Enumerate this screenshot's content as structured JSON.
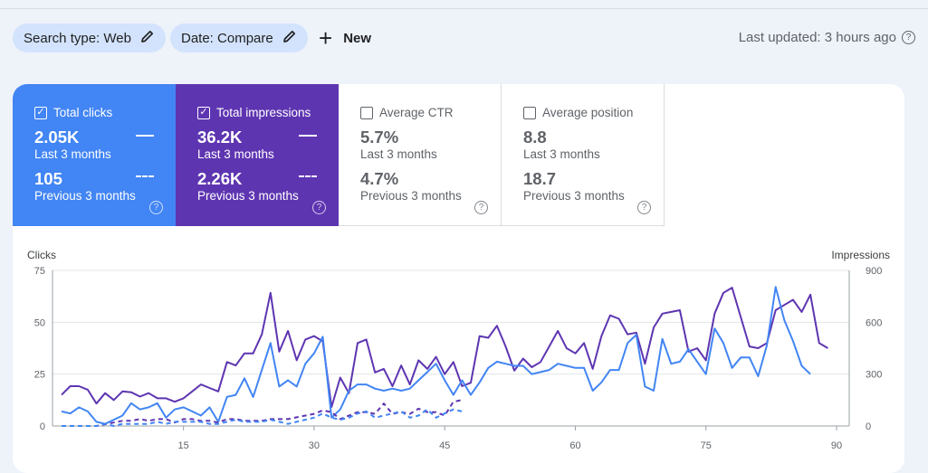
{
  "filters": {
    "search_type": "Search type: Web",
    "date": "Date: Compare",
    "new_label": "New"
  },
  "last_updated": "Last updated: 3 hours ago",
  "metrics": [
    {
      "name": "Total clicks",
      "checked": true,
      "current": "2.05K",
      "current_label": "Last 3 months",
      "previous": "105",
      "previous_label": "Previous 3 months",
      "color": "#4285f4"
    },
    {
      "name": "Total impressions",
      "checked": true,
      "current": "36.2K",
      "current_label": "Last 3 months",
      "previous": "2.26K",
      "previous_label": "Previous 3 months",
      "color": "#5e35b1"
    },
    {
      "name": "Average CTR",
      "checked": false,
      "current": "5.7%",
      "current_label": "Last 3 months",
      "previous": "4.7%",
      "previous_label": "Previous 3 months"
    },
    {
      "name": "Average position",
      "checked": false,
      "current": "8.8",
      "current_label": "Last 3 months",
      "previous": "18.7",
      "previous_label": "Previous 3 months"
    }
  ],
  "icons": {
    "edit": "pencil-icon",
    "add": "plus-icon",
    "help": "help-circle-icon",
    "checkbox": "checkbox-icon"
  },
  "chart_data": {
    "type": "line",
    "ylabel_left": "Clicks",
    "ylabel_right": "Impressions",
    "ylim_left": [
      0,
      75
    ],
    "ylim_right": [
      0,
      900
    ],
    "yticks_left": [
      "0",
      "25",
      "50",
      "75"
    ],
    "yticks_right": [
      "0",
      "300",
      "600",
      "900"
    ],
    "xticks": [
      "15",
      "30",
      "45",
      "60",
      "75",
      "90"
    ],
    "x_range": [
      1,
      90
    ],
    "grid": true,
    "series": [
      {
        "name": "Total impressions",
        "axis": "right",
        "color": "#5e35b1",
        "dash": false,
        "values": [
          180,
          230,
          230,
          210,
          130,
          190,
          150,
          200,
          195,
          170,
          190,
          160,
          160,
          140,
          160,
          200,
          240,
          220,
          200,
          370,
          350,
          420,
          420,
          530,
          770,
          430,
          550,
          380,
          500,
          520,
          490,
          110,
          280,
          190,
          480,
          500,
          310,
          330,
          230,
          350,
          240,
          380,
          330,
          400,
          300,
          370,
          230,
          250,
          520,
          510,
          580,
          460,
          320,
          390,
          340,
          370,
          460,
          550,
          450,
          420,
          480,
          330,
          520,
          640,
          620,
          530,
          540,
          360,
          570,
          650,
          660,
          670,
          430,
          450,
          380,
          650,
          770,
          800,
          630,
          460,
          450,
          480,
          670,
          700,
          730,
          660,
          760,
          480,
          450
        ]
      },
      {
        "name": "Total clicks",
        "axis": "left",
        "color": "#4285f4",
        "dash": false,
        "values": [
          7,
          6,
          9,
          7,
          2,
          1,
          3,
          5,
          11,
          8,
          9,
          11,
          4,
          8,
          9,
          7,
          5,
          9,
          2,
          14,
          15,
          23,
          14,
          27,
          40,
          19,
          22,
          19,
          30,
          35,
          43,
          4,
          8,
          17,
          20,
          20,
          18,
          17,
          18,
          17,
          18,
          22,
          26,
          30,
          22,
          15,
          22,
          15,
          21,
          28,
          31,
          30,
          29,
          29,
          25,
          26,
          27,
          30,
          29,
          28,
          28,
          17,
          21,
          27,
          27,
          40,
          44,
          19,
          17,
          42,
          30,
          31,
          37,
          31,
          25,
          47,
          40,
          28,
          33,
          33,
          24,
          39,
          67,
          51,
          41,
          29,
          25
        ]
      },
      {
        "name": "Total impressions (previous)",
        "axis": "right",
        "color": "#5e35b1",
        "dash": true,
        "values": [
          0,
          0,
          0,
          0,
          0,
          10,
          20,
          30,
          30,
          40,
          30,
          40,
          40,
          20,
          40,
          40,
          30,
          30,
          20,
          40,
          40,
          30,
          30,
          30,
          40,
          40,
          40,
          50,
          60,
          70,
          90,
          80,
          40,
          60,
          80,
          80,
          70,
          130,
          70,
          80,
          70,
          100,
          80,
          80,
          60,
          140,
          150
        ]
      },
      {
        "name": "Total clicks (previous)",
        "axis": "left",
        "color": "#4285f4",
        "dash": true,
        "values": [
          0,
          0,
          0,
          0,
          0,
          1,
          0,
          1,
          1,
          1,
          1,
          2,
          1,
          2,
          2,
          2,
          2,
          1,
          1,
          2,
          3,
          2,
          2,
          2,
          3,
          2,
          1,
          2,
          3,
          4,
          6,
          4,
          3,
          4,
          6,
          7,
          4,
          5,
          6,
          7,
          4,
          5,
          8,
          4,
          6,
          8,
          7
        ]
      }
    ]
  }
}
